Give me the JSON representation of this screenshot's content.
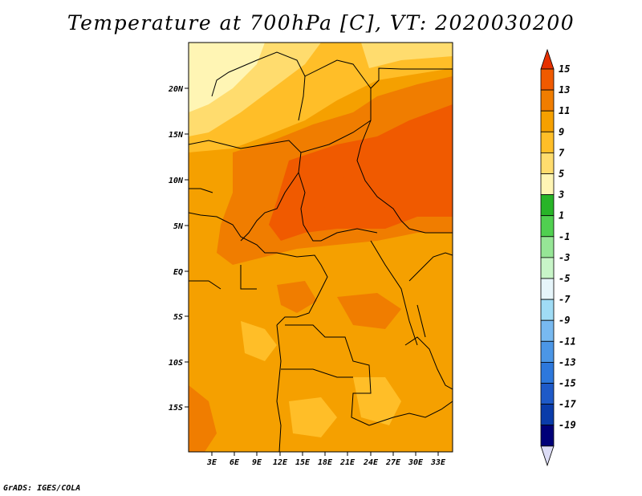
{
  "title": "Temperature at 700hPa [C], VT: 2020030200",
  "credit": "GrADS: IGES/COLA",
  "map": {
    "lat_labels": [
      "20N",
      "15N",
      "10N",
      "5N",
      "EQ",
      "5S",
      "10S",
      "15S"
    ],
    "lon_labels": [
      "3E",
      "6E",
      "9E",
      "12E",
      "15E",
      "18E",
      "21E",
      "24E",
      "27E",
      "30E",
      "33E"
    ]
  },
  "colorbar": {
    "labels": [
      "15",
      "13",
      "11",
      "9",
      "7",
      "5",
      "3",
      "1",
      "-1",
      "-3",
      "-5",
      "-7",
      "-9",
      "-11",
      "-13",
      "-15",
      "-17",
      "-19"
    ],
    "colors": [
      "#e63000",
      "#f05a00",
      "#f07d00",
      "#f5a000",
      "#ffbe28",
      "#ffdc6e",
      "#fff5b4",
      "#28b428",
      "#50d050",
      "#96e696",
      "#c8f5c8",
      "#e6f5fa",
      "#a0dcf5",
      "#78b9f0",
      "#4b96e6",
      "#2d78dc",
      "#1e5ac8",
      "#0a3caa",
      "#000078",
      "#dcdcf5"
    ]
  }
}
